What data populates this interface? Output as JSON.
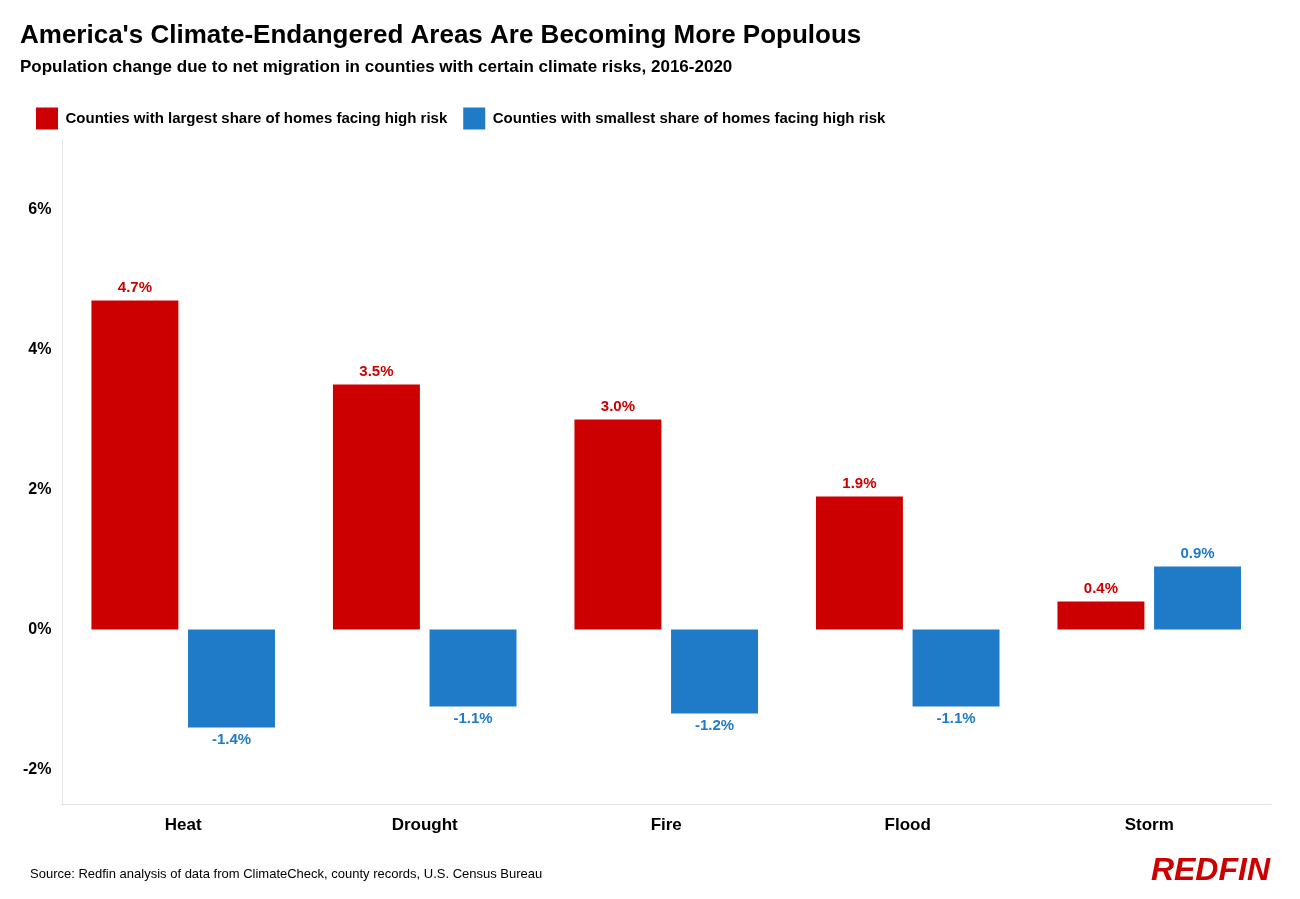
{
  "chart_data": {
    "type": "bar",
    "title": "America's Climate-Endangered Areas Are Becoming More Populous",
    "subtitle": "Population change due to net migration in counties with certain climate risks, 2016-2020",
    "categories": [
      "Heat",
      "Drought",
      "Fire",
      "Flood",
      "Storm"
    ],
    "series": [
      {
        "name": "Counties with largest share of homes facing high risk",
        "color": "#CC0000",
        "values": [
          4.7,
          3.5,
          3.0,
          1.9,
          0.4
        ],
        "value_labels": [
          "4.7%",
          "3.5%",
          "3.0%",
          "1.9%",
          "0.4%"
        ]
      },
      {
        "name": "Counties with smallest share of homes facing high risk",
        "color": "#1F7BC8",
        "values": [
          -1.4,
          -1.1,
          -1.2,
          -1.1,
          0.9
        ],
        "value_labels": [
          "-1.4%",
          "-1.1%",
          "-1.2%",
          "-1.1%",
          "0.9%"
        ]
      }
    ],
    "ylim": [
      -2.5,
      7.0
    ],
    "yticks": [
      {
        "value": -2,
        "label": "-2%"
      },
      {
        "value": 0,
        "label": "0%"
      },
      {
        "value": 2,
        "label": "2%"
      },
      {
        "value": 4,
        "label": "4%"
      },
      {
        "value": 6,
        "label": "6%"
      }
    ],
    "grid": false,
    "legend": "top",
    "data_labels": true,
    "annotations": [
      {
        "text": "Source: Redfin analysis of data from ClimateCheck, county records, U.S. Census Bureau"
      },
      {
        "text": "REDFIN",
        "color": "#CC0000"
      }
    ]
  }
}
